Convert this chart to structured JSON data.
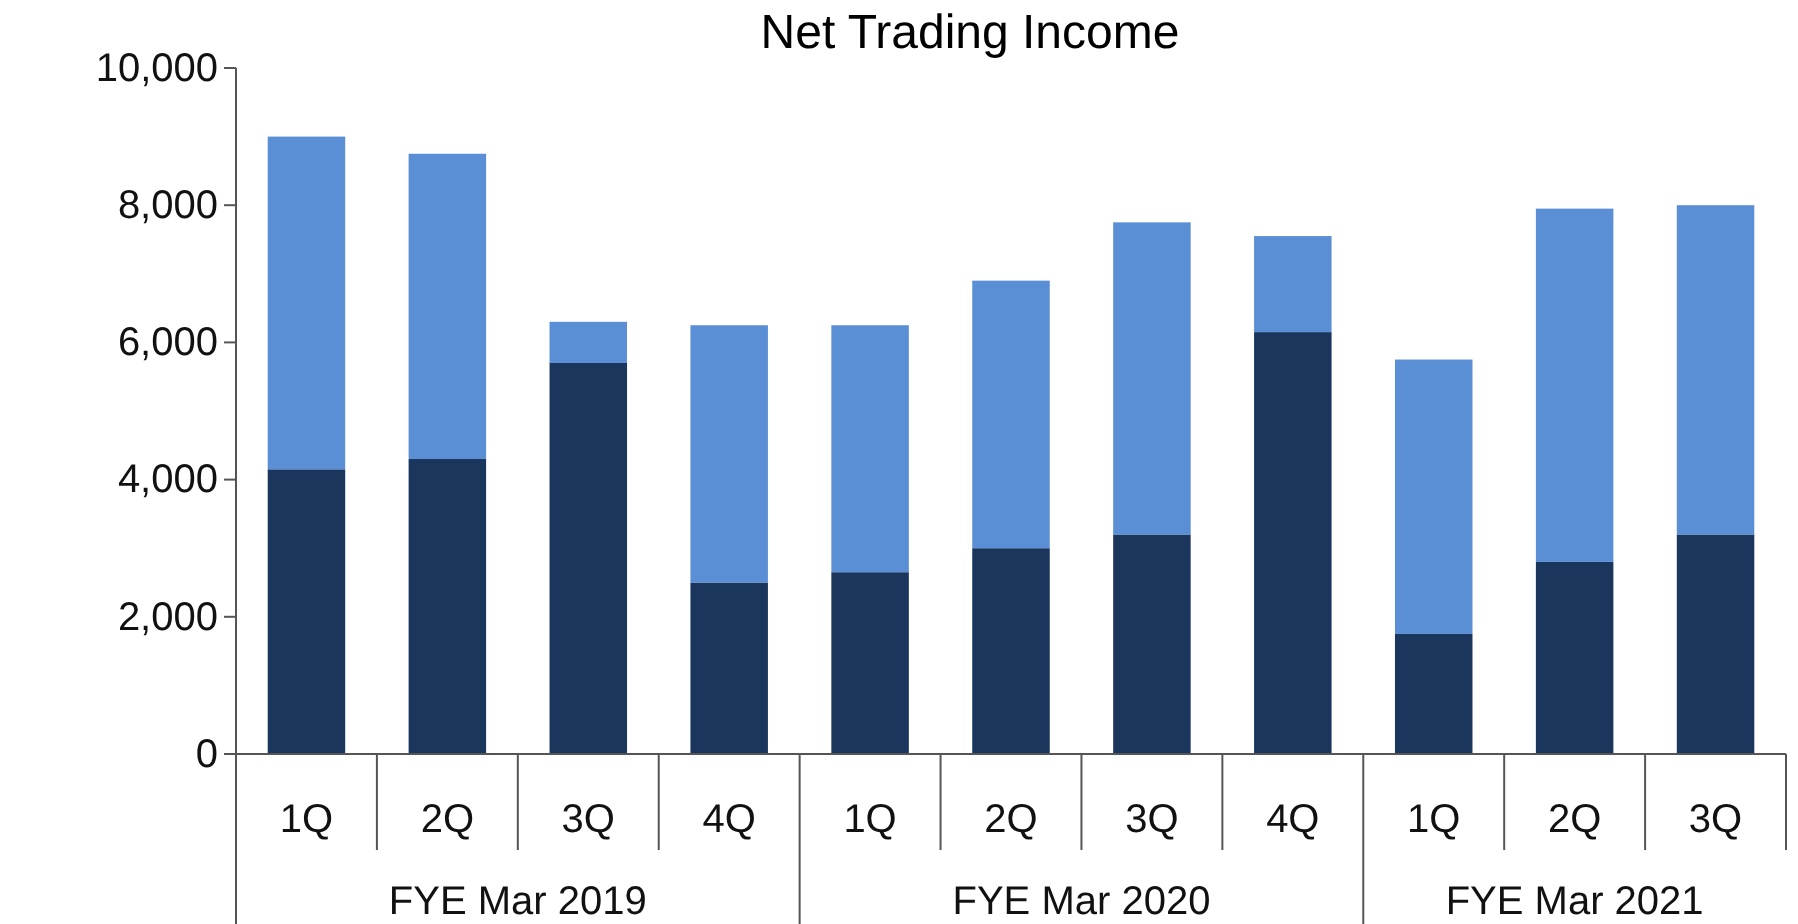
{
  "chart_data": {
    "type": "bar",
    "title": "Net Trading Income",
    "stacked": true,
    "categories": [
      "1Q",
      "2Q",
      "3Q",
      "4Q",
      "1Q",
      "2Q",
      "3Q",
      "4Q",
      "1Q",
      "2Q",
      "3Q"
    ],
    "series": [
      {
        "color": "#1b365d",
        "values": [
          4150,
          4300,
          5700,
          2500,
          2650,
          3000,
          3200,
          6150,
          1750,
          2800,
          3200
        ]
      },
      {
        "color": "#5a8fd6",
        "values": [
          4850,
          4450,
          600,
          3750,
          3600,
          3900,
          4550,
          1400,
          4000,
          5150,
          4800
        ]
      }
    ],
    "ylim": [
      0,
      10000
    ],
    "yticks": [
      {
        "value": 0,
        "label": "0"
      },
      {
        "value": 2000,
        "label": "2,000"
      },
      {
        "value": 4000,
        "label": "4,000"
      },
      {
        "value": 6000,
        "label": "6,000"
      },
      {
        "value": 8000,
        "label": "8,000"
      },
      {
        "value": 10000,
        "label": "10,000"
      }
    ],
    "grid": false,
    "annotations": [
      "FYE Mar 2019",
      "FYE Mar 2020",
      "FYE Mar 2021"
    ]
  }
}
